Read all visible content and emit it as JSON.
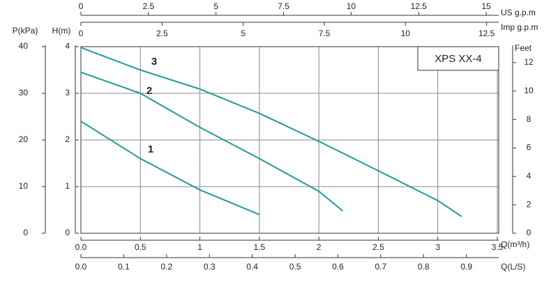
{
  "chart_data": {
    "type": "line",
    "model": "XPS XX-4",
    "grid": true,
    "xaxes": [
      {
        "label": "Q(m³/h)",
        "xlim": [
          0,
          3.5
        ],
        "xticks": [
          {
            "value": 0,
            "label": "0.0"
          },
          0.5,
          1,
          1.5,
          2,
          2.5,
          3,
          3.5
        ]
      },
      {
        "label": "Q(L/S)",
        "xlim": [
          0,
          0.9722
        ],
        "xticks": [
          {
            "value": 0,
            "label": "0.0"
          },
          0.1,
          0.2,
          0.3,
          0.4,
          0.5,
          0.6,
          0.7,
          0.8,
          0.9
        ]
      },
      {
        "label": "US  g.p.m",
        "xlim": [
          0,
          15.41
        ],
        "xticks": [
          0,
          2.5,
          5,
          7.5,
          10,
          12.5,
          15
        ]
      },
      {
        "label": "Imp  g.p.m",
        "xlim": [
          0,
          12.83
        ],
        "xticks": [
          0,
          2.5,
          5,
          7.5,
          10,
          12.5
        ]
      }
    ],
    "yaxes": [
      {
        "label": "H(m)",
        "ylim": [
          0,
          4
        ],
        "yticks": [
          0,
          1,
          2,
          3,
          4
        ]
      },
      {
        "label": "P(kPa)",
        "ylim": [
          0,
          40
        ],
        "yticks": [
          0,
          10,
          20,
          30,
          40
        ]
      },
      {
        "label": "Feet",
        "ylim": [
          0,
          13.12
        ],
        "yticks": [
          0,
          2,
          4,
          6,
          8,
          10,
          12
        ]
      }
    ],
    "series": [
      {
        "name": "1",
        "color": "#1f9a96",
        "x": [
          0,
          0.5,
          1,
          1.5
        ],
        "values": [
          2.4,
          1.6,
          0.93,
          0.4
        ]
      },
      {
        "name": "2",
        "color": "#1f9a96",
        "x": [
          0,
          0.5,
          1,
          1.5,
          2,
          2.2
        ],
        "values": [
          3.45,
          3.0,
          2.27,
          1.6,
          0.9,
          0.48
        ]
      },
      {
        "name": "3",
        "color": "#1f9a96",
        "x": [
          0,
          0.5,
          1,
          1.5,
          2,
          2.5,
          3,
          3.2
        ],
        "values": [
          3.98,
          3.5,
          3.09,
          2.57,
          1.97,
          1.34,
          0.7,
          0.36
        ]
      }
    ]
  }
}
